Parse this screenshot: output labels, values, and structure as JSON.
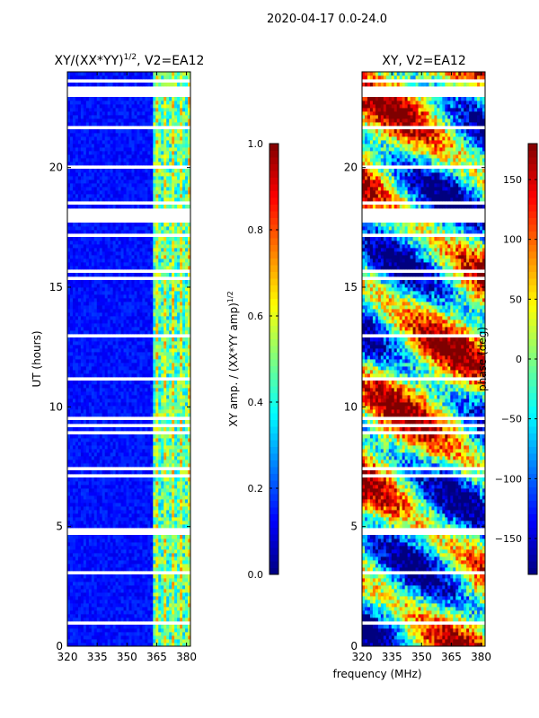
{
  "figure": {
    "suptitle": "2020-04-17 0.0-24.0",
    "xlabel": "frequency (MHz)"
  },
  "chart_data": [
    {
      "type": "heatmap",
      "title": "XY/(XX*YY)",
      "title_exponent": "1/2",
      "title_suffix": ", V2=EA12",
      "xlabel": "",
      "ylabel": "UT (hours)",
      "xlim": [
        320,
        382
      ],
      "ylim": [
        0,
        24
      ],
      "xticks": [
        320,
        335,
        350,
        365,
        380
      ],
      "yticks": [
        0,
        5,
        10,
        15,
        20
      ],
      "colorbar": {
        "label": "XY amp. / (XX*YY amp)",
        "label_exponent": "1/2",
        "range": [
          0.0,
          1.0
        ],
        "ticks": [
          "0.0",
          "0.2",
          "0.4",
          "0.6",
          "0.8",
          "1.0"
        ],
        "colormap": "jet"
      },
      "description_values": {
        "low_band_level": 0.1,
        "high_band_start_mhz": 363,
        "high_band_level": 0.45
      }
    },
    {
      "type": "heatmap",
      "title": "XY, V2=EA12",
      "xlabel": "",
      "ylabel": "",
      "xlim": [
        320,
        382
      ],
      "ylim": [
        0,
        24
      ],
      "xticks": [
        320,
        335,
        350,
        365,
        380
      ],
      "yticks": [
        0,
        5,
        10,
        15,
        20
      ],
      "colorbar": {
        "label": "phase (deg)",
        "range": [
          -180,
          180
        ],
        "ticks": [
          "150",
          "100",
          "50",
          "0",
          "−50",
          "−100",
          "−150"
        ],
        "tick_values": [
          150,
          100,
          50,
          0,
          -50,
          -100,
          -150
        ],
        "colormap": "jet"
      }
    }
  ],
  "colors": {
    "jet": [
      "#00007f",
      "#0000ff",
      "#007fff",
      "#00ffff",
      "#7fff7f",
      "#ffff00",
      "#ff7f00",
      "#ff0000",
      "#7f0000"
    ]
  }
}
